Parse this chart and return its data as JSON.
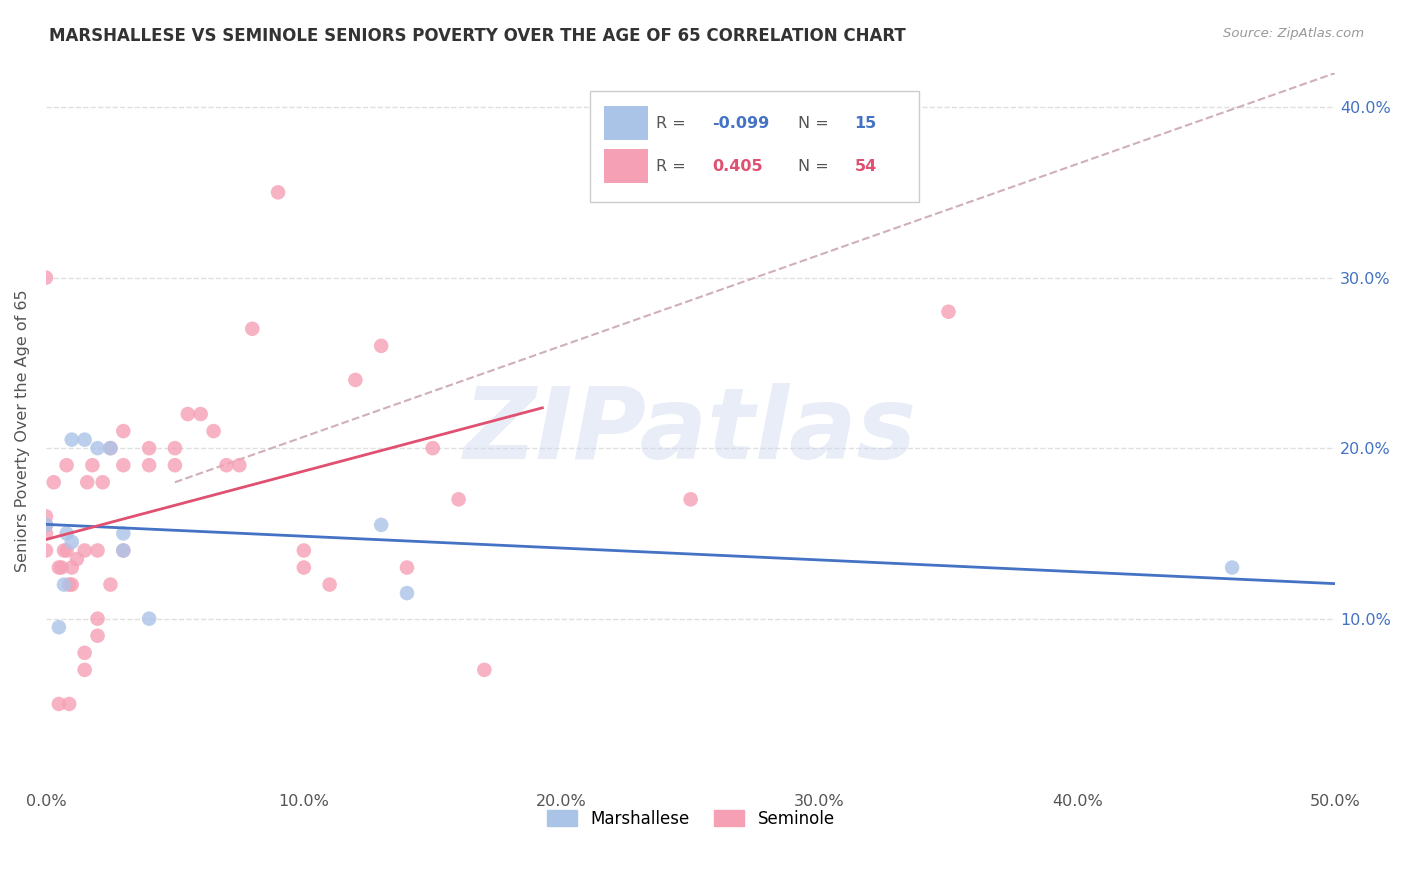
{
  "title": "MARSHALLESE VS SEMINOLE SENIORS POVERTY OVER THE AGE OF 65 CORRELATION CHART",
  "source": "Source: ZipAtlas.com",
  "ylabel": "Seniors Poverty Over the Age of 65",
  "xlim": [
    0.0,
    0.5
  ],
  "ylim": [
    0.0,
    0.42
  ],
  "xticks": [
    0.0,
    0.1,
    0.2,
    0.3,
    0.4,
    0.5
  ],
  "yticks": [
    0.1,
    0.2,
    0.3,
    0.4
  ],
  "marshallese_R": -0.099,
  "marshallese_N": 15,
  "seminole_R": 0.405,
  "seminole_N": 54,
  "marshallese_color": "#aac4e8",
  "seminole_color": "#f5a0b5",
  "marshallese_line_color": "#4472c4",
  "seminole_line_color": "#e05070",
  "diagonal_line_color": "#d0b0b8",
  "marshallese_x": [
    0.0,
    0.005,
    0.007,
    0.008,
    0.01,
    0.01,
    0.015,
    0.02,
    0.025,
    0.03,
    0.03,
    0.04,
    0.13,
    0.14,
    0.46
  ],
  "marshallese_y": [
    0.155,
    0.095,
    0.12,
    0.15,
    0.145,
    0.205,
    0.205,
    0.2,
    0.2,
    0.14,
    0.15,
    0.1,
    0.155,
    0.115,
    0.13
  ],
  "seminole_x": [
    0.0,
    0.0,
    0.0,
    0.0,
    0.0,
    0.003,
    0.005,
    0.005,
    0.006,
    0.007,
    0.008,
    0.008,
    0.009,
    0.009,
    0.01,
    0.01,
    0.012,
    0.015,
    0.015,
    0.015,
    0.016,
    0.018,
    0.02,
    0.02,
    0.02,
    0.022,
    0.025,
    0.025,
    0.03,
    0.03,
    0.03,
    0.04,
    0.04,
    0.05,
    0.05,
    0.055,
    0.06,
    0.065,
    0.07,
    0.075,
    0.08,
    0.09,
    0.1,
    0.1,
    0.11,
    0.12,
    0.13,
    0.14,
    0.15,
    0.16,
    0.17,
    0.25,
    0.3,
    0.35
  ],
  "seminole_y": [
    0.14,
    0.15,
    0.155,
    0.16,
    0.3,
    0.18,
    0.05,
    0.13,
    0.13,
    0.14,
    0.14,
    0.19,
    0.05,
    0.12,
    0.12,
    0.13,
    0.135,
    0.07,
    0.08,
    0.14,
    0.18,
    0.19,
    0.09,
    0.1,
    0.14,
    0.18,
    0.12,
    0.2,
    0.19,
    0.21,
    0.14,
    0.19,
    0.2,
    0.19,
    0.2,
    0.22,
    0.22,
    0.21,
    0.19,
    0.19,
    0.27,
    0.35,
    0.13,
    0.14,
    0.12,
    0.24,
    0.26,
    0.13,
    0.2,
    0.17,
    0.07,
    0.17,
    0.38,
    0.28
  ],
  "watermark_text": "ZIPatlas",
  "background_color": "#ffffff",
  "grid_color": "#e0e0e0"
}
